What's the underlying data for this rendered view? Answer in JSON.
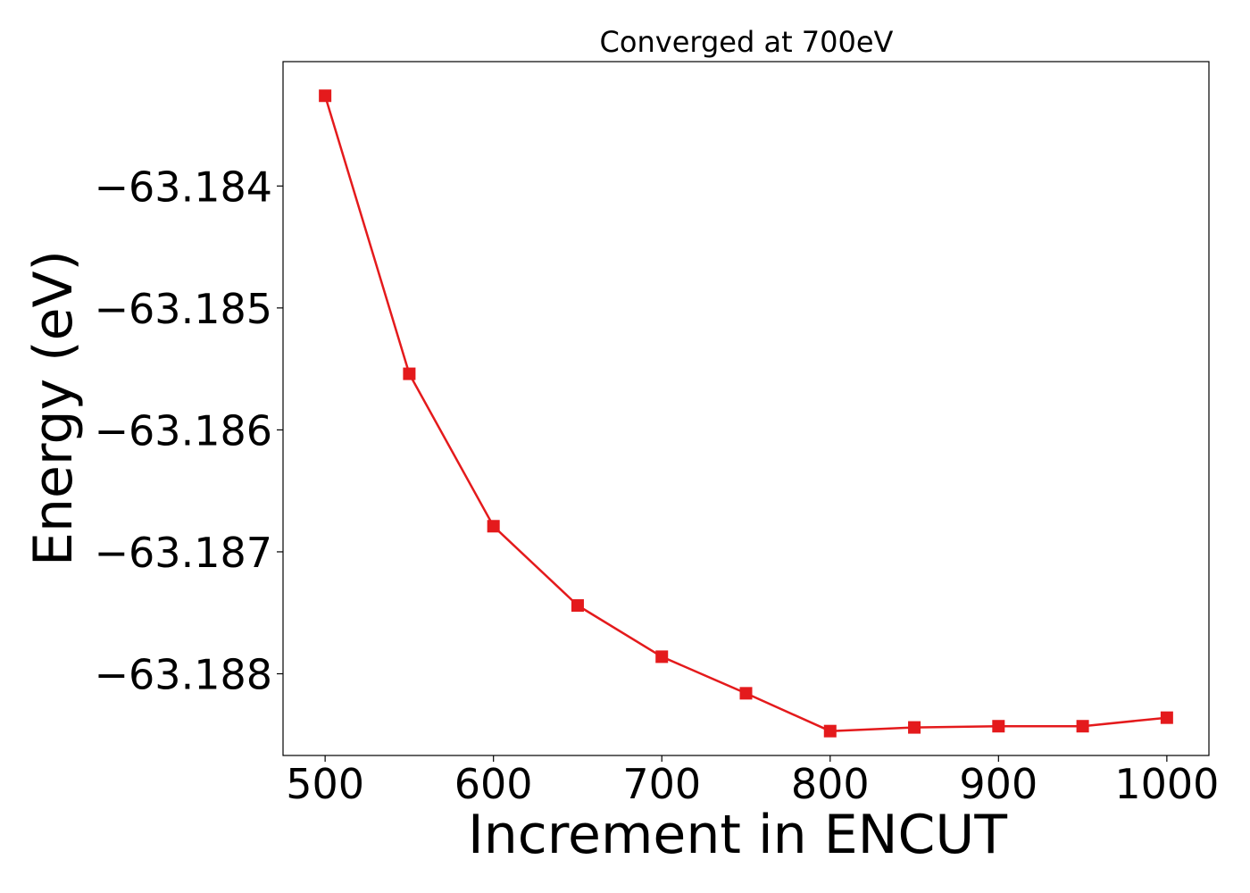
{
  "chart_data": {
    "type": "line",
    "title": "Converged at 700eV",
    "xlabel": "Increment in ENCUT",
    "ylabel": "Energy (eV)",
    "xlim": [
      475,
      1025
    ],
    "ylim": [
      -63.18867,
      -63.18298
    ],
    "x_ticks": [
      500,
      600,
      700,
      800,
      900,
      1000
    ],
    "x_tick_labels": [
      "500",
      "600",
      "700",
      "800",
      "900",
      "1000"
    ],
    "y_ticks": [
      -63.184,
      -63.185,
      -63.186,
      -63.187,
      -63.188
    ],
    "y_tick_labels": [
      "−63.184",
      "−63.185",
      "−63.186",
      "−63.187",
      "−63.188"
    ],
    "grid": false,
    "series": [
      {
        "color": "#e41a1c",
        "marker": "square",
        "x": [
          500,
          550,
          600,
          650,
          700,
          750,
          800,
          850,
          900,
          950,
          1000
        ],
        "y": [
          -63.18326,
          -63.18554,
          -63.18679,
          -63.18744,
          -63.18786,
          -63.18816,
          -63.18847,
          -63.18844,
          -63.18843,
          -63.18843,
          -63.18836
        ]
      }
    ]
  }
}
